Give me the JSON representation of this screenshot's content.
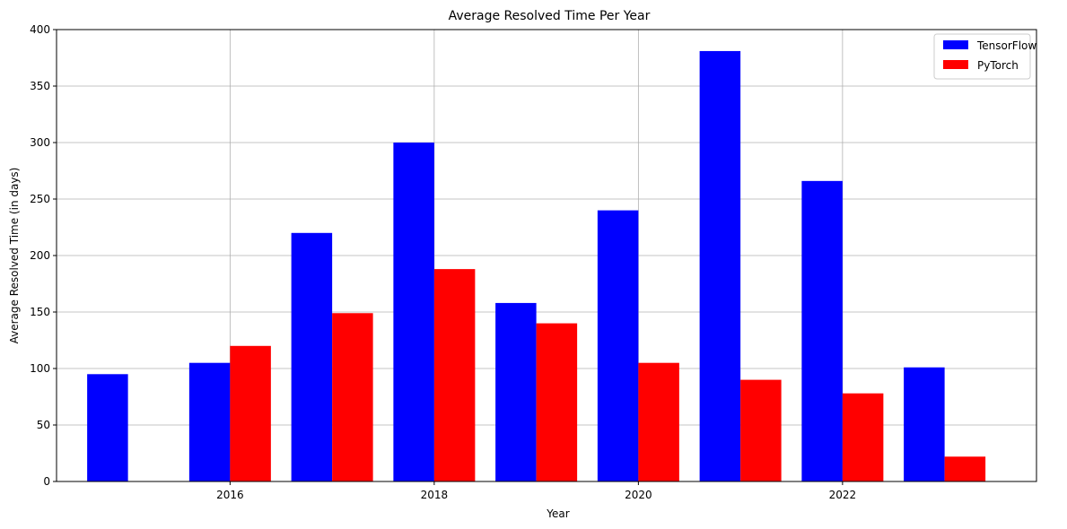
{
  "chart_data": {
    "type": "bar",
    "title": "Average Resolved Time Per Year",
    "xlabel": "Year",
    "ylabel": "Average Resolved Time (in days)",
    "x": [
      2015,
      2016,
      2017,
      2018,
      2019,
      2020,
      2021,
      2022,
      2023
    ],
    "xticks": [
      2016,
      2018,
      2020,
      2022
    ],
    "xlim": [
      2014.3,
      2023.9
    ],
    "ylim": [
      0,
      400
    ],
    "yticks": [
      0,
      50,
      100,
      150,
      200,
      250,
      300,
      350,
      400
    ],
    "grid": true,
    "legend_position": "top-right",
    "series": [
      {
        "name": "TensorFlow",
        "color": "#0000ff",
        "values": [
          95,
          105,
          220,
          300,
          158,
          240,
          381,
          266,
          101
        ]
      },
      {
        "name": "PyTorch",
        "color": "#ff0000",
        "values": [
          null,
          120,
          149,
          188,
          140,
          105,
          90,
          78,
          22
        ]
      }
    ]
  }
}
